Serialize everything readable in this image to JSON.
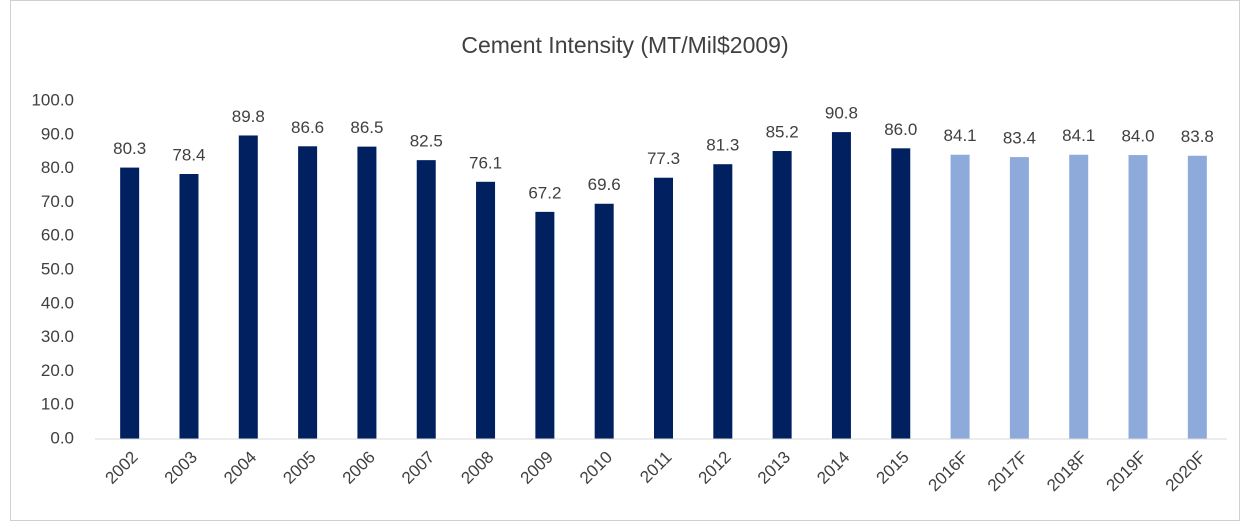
{
  "chart_data": {
    "type": "bar",
    "title": "Cement Intensity (MT/Mil$2009)",
    "categories": [
      "2002",
      "2003",
      "2004",
      "2005",
      "2006",
      "2007",
      "2008",
      "2009",
      "2010",
      "2011",
      "2012",
      "2013",
      "2014",
      "2015",
      "2016F",
      "2017F",
      "2018F",
      "2019F",
      "2020F"
    ],
    "values": [
      80.3,
      78.4,
      89.8,
      86.6,
      86.5,
      82.5,
      76.1,
      67.2,
      69.6,
      77.3,
      81.3,
      85.2,
      90.8,
      86.0,
      84.1,
      83.4,
      84.1,
      84.0,
      83.8
    ],
    "value_labels": [
      "80.3",
      "78.4",
      "89.8",
      "86.6",
      "86.5",
      "82.5",
      "76.1",
      "67.2",
      "69.6",
      "77.3",
      "81.3",
      "85.2",
      "90.8",
      "86.0",
      "84.1",
      "83.4",
      "84.1",
      "84.0",
      "83.8"
    ],
    "colors": [
      "#002060",
      "#002060",
      "#002060",
      "#002060",
      "#002060",
      "#002060",
      "#002060",
      "#002060",
      "#002060",
      "#002060",
      "#002060",
      "#002060",
      "#002060",
      "#002060",
      "#8eaadb",
      "#8eaadb",
      "#8eaadb",
      "#8eaadb",
      "#8eaadb"
    ],
    "ylim": [
      0,
      100
    ],
    "yticks": [
      {
        "value": 0,
        "label": "0.0"
      },
      {
        "value": 10,
        "label": "10.0"
      },
      {
        "value": 20,
        "label": "20.0"
      },
      {
        "value": 30,
        "label": "30.0"
      },
      {
        "value": 40,
        "label": "40.0"
      },
      {
        "value": 50,
        "label": "50.0"
      },
      {
        "value": 60,
        "label": "60.0"
      },
      {
        "value": 70,
        "label": "70.0"
      },
      {
        "value": 80,
        "label": "80.0"
      },
      {
        "value": 90,
        "label": "90.0"
      },
      {
        "value": 100,
        "label": "100.0"
      }
    ],
    "grid": false
  }
}
